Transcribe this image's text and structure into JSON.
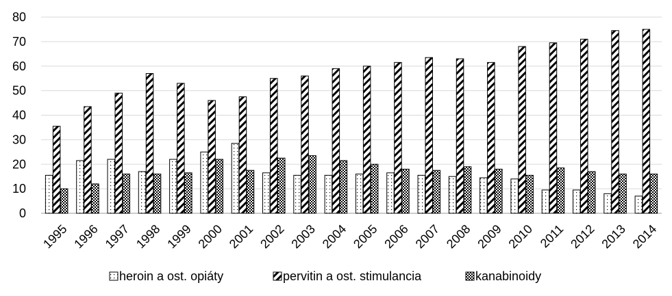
{
  "chart_data": {
    "type": "bar",
    "categories": [
      "1995",
      "1996",
      "1997",
      "1998",
      "1999",
      "2000",
      "2001",
      "2002",
      "2003",
      "2004",
      "2005",
      "2006",
      "2007",
      "2008",
      "2009",
      "2010",
      "2011",
      "2012",
      "2013",
      "2014"
    ],
    "series": [
      {
        "name": "heroin a ost. opiáty",
        "pattern": "dots",
        "values": [
          15.5,
          21.5,
          22,
          17,
          22,
          25,
          28.5,
          16.5,
          15.5,
          15.5,
          16,
          16.5,
          15.5,
          15,
          14.5,
          14,
          9.5,
          9.5,
          8,
          7
        ]
      },
      {
        "name": "pervitin a ost. stimulancia",
        "pattern": "diagonal",
        "values": [
          35.5,
          43.5,
          49,
          57,
          53,
          46,
          47.5,
          55,
          56,
          59,
          60,
          61.5,
          63.5,
          63,
          61.5,
          68,
          69.5,
          71,
          74.5,
          75
        ]
      },
      {
        "name": "kanabinoidy",
        "pattern": "checker",
        "values": [
          10,
          12,
          16,
          16,
          16.5,
          22,
          17.5,
          22.5,
          23.5,
          21.5,
          20,
          18,
          17.5,
          19,
          18,
          15.5,
          18.5,
          17,
          16,
          16
        ]
      }
    ],
    "yticks": [
      "0",
      "10",
      "20",
      "30",
      "40",
      "50",
      "60",
      "70",
      "80"
    ],
    "ylim": [
      0,
      80
    ],
    "grid": true,
    "legend_position": "bottom",
    "colors": {
      "bar_stroke": "#000000",
      "grid": "#d9d9d9",
      "bar_fill": "#ffffff"
    }
  }
}
